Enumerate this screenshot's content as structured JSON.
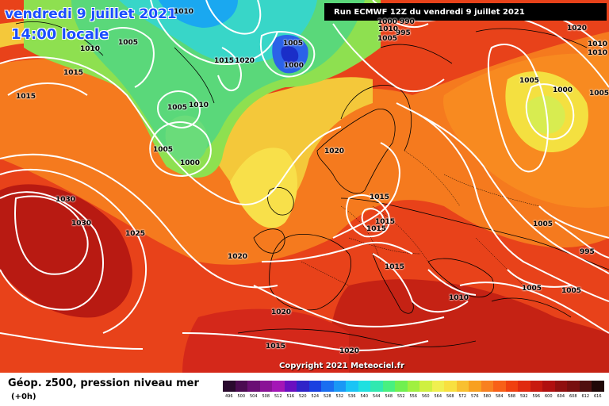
{
  "header": {
    "date_line": "vendredi 9 juillet 2021",
    "time_line": "14:00 locale",
    "run_banner": "Run ECMWF 12Z du vendredi 9 juillet 2021"
  },
  "footer": {
    "copyright": "Copyright 2021 Meteociel.fr",
    "legend_title": "Géop. z500, pression niveau mer",
    "legend_sub": "(+0h)"
  },
  "colorbar": {
    "labels": [
      "496",
      "500",
      "504",
      "508",
      "512",
      "516",
      "520",
      "524",
      "528",
      "532",
      "536",
      "540",
      "544",
      "548",
      "552",
      "556",
      "560",
      "564",
      "568",
      "572",
      "576",
      "580",
      "584",
      "588",
      "592",
      "596",
      "600",
      "604",
      "608",
      "612",
      "616"
    ],
    "colors": [
      "#2a0a2e",
      "#4b0b52",
      "#6a0e74",
      "#8a1296",
      "#a416b6",
      "#6a0fc0",
      "#2f23c8",
      "#1a3fe0",
      "#1a6ef0",
      "#1a98f5",
      "#1ac4f5",
      "#20e0e0",
      "#30e8b0",
      "#48f080",
      "#70f050",
      "#a0f040",
      "#cff040",
      "#f0f050",
      "#f8e040",
      "#f8c030",
      "#f8a020",
      "#f88020",
      "#f86018",
      "#f04010",
      "#e02a10",
      "#c81a10",
      "#b01010",
      "#901010",
      "#781010",
      "#501010",
      "#200808"
    ]
  },
  "isobars": [
    {
      "text": "1010",
      "cls": "a"
    },
    {
      "text": "1005",
      "cls": "b"
    },
    {
      "text": "1000",
      "cls": "c"
    },
    {
      "text": "1015",
      "cls": "d"
    },
    {
      "text": "1020",
      "cls": "e"
    },
    {
      "text": "1010",
      "cls": "f"
    },
    {
      "text": "1015",
      "cls": "g"
    },
    {
      "text": "1015",
      "cls": "h"
    },
    {
      "text": "1005",
      "cls": "i"
    },
    {
      "text": "1010",
      "cls": "j"
    },
    {
      "text": "1005",
      "cls": "k"
    },
    {
      "text": "1000",
      "cls": "l"
    },
    {
      "text": "1030",
      "cls": "m"
    },
    {
      "text": "1030",
      "cls": "n"
    },
    {
      "text": "1025",
      "cls": "o"
    },
    {
      "text": "1020",
      "cls": "p"
    },
    {
      "text": "1020",
      "cls": "q"
    },
    {
      "text": "1015",
      "cls": "r"
    },
    {
      "text": "1015",
      "cls": "s"
    },
    {
      "text": "1015",
      "cls": "t"
    },
    {
      "text": "1015",
      "cls": "u"
    },
    {
      "text": "1010",
      "cls": "v"
    },
    {
      "text": "1005",
      "cls": "w"
    },
    {
      "text": "1005",
      "cls": "x"
    },
    {
      "text": "995",
      "cls": "y"
    },
    {
      "text": "1005",
      "cls": "z"
    },
    {
      "text": "1000",
      "cls": "aa"
    },
    {
      "text": "1005",
      "cls": "ab"
    },
    {
      "text": "1010",
      "cls": "ac"
    },
    {
      "text": "1005",
      "cls": "ad"
    },
    {
      "text": "1000",
      "cls": "ae"
    },
    {
      "text": "1005",
      "cls": "af"
    },
    {
      "text": "990",
      "cls": "ag"
    },
    {
      "text": "995",
      "cls": "ah"
    },
    {
      "text": "1005",
      "cls": "ai"
    },
    {
      "text": "1020",
      "cls": "aj"
    },
    {
      "text": "1020",
      "cls": "ak"
    },
    {
      "text": "1015",
      "cls": "al"
    },
    {
      "text": "1020",
      "cls": "am"
    },
    {
      "text": "1010",
      "cls": "an"
    },
    {
      "text": "1010",
      "cls": "ao"
    }
  ]
}
